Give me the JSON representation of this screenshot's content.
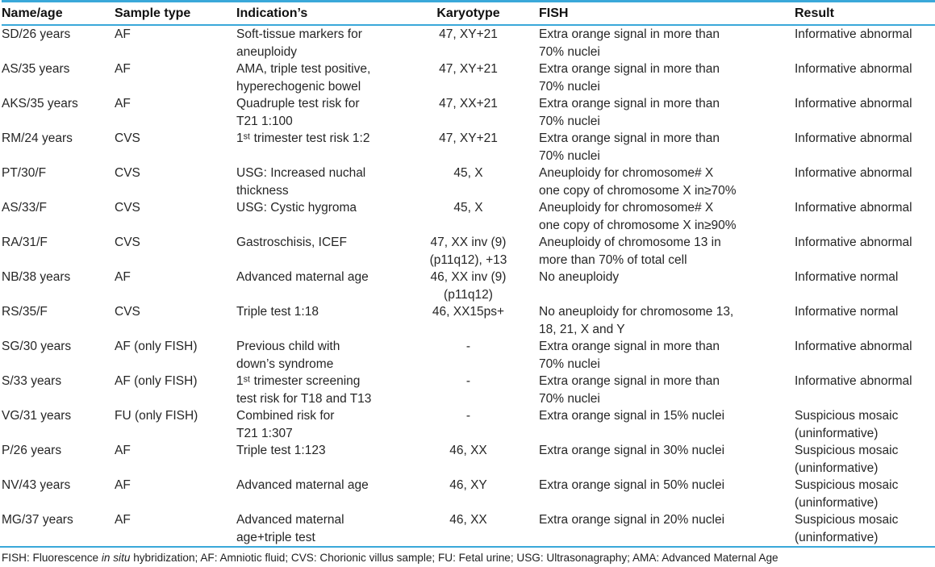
{
  "theme": {
    "accent_color": "#3aa8d9",
    "text_color": "#262626"
  },
  "table": {
    "columns": [
      {
        "key": "name",
        "label": "Name/age"
      },
      {
        "key": "sample",
        "label": "Sample type"
      },
      {
        "key": "indication",
        "label": "Indication’s"
      },
      {
        "key": "karyotype",
        "label": "Karyotype"
      },
      {
        "key": "fish",
        "label": "FISH"
      },
      {
        "key": "result",
        "label": "Result"
      }
    ],
    "rows": [
      {
        "name": "SD/26 years",
        "sample": "AF",
        "indication": "Soft-tissue markers for\naneuploidy",
        "karyotype": "47, XY+21",
        "fish": "Extra orange signal in more than\n70% nuclei",
        "result": "Informative abnormal"
      },
      {
        "name": "AS/35 years",
        "sample": "AF",
        "indication": "AMA, triple test positive,\nhyperechogenic bowel",
        "karyotype": "47, XY+21",
        "fish": "Extra orange signal in more than\n70% nuclei",
        "result": "Informative abnormal"
      },
      {
        "name": "AKS/35 years",
        "sample": "AF",
        "indication": "Quadruple test risk for\nT21 1:100",
        "karyotype": "47, XX+21",
        "fish": "Extra orange signal in more than\n70% nuclei",
        "result": "Informative abnormal"
      },
      {
        "name": "RM/24 years",
        "sample": "CVS",
        "indication": "1ˢᵗ trimester test risk 1:2",
        "karyotype": "47, XY+21",
        "fish": "Extra orange signal in more than\n70% nuclei",
        "result": "Informative abnormal"
      },
      {
        "name": "PT/30/F",
        "sample": "CVS",
        "indication": "USG: Increased nuchal\nthickness",
        "karyotype": "45, X",
        "fish": "Aneuploidy for chromosome# X\none copy of chromosome X in≥70%",
        "result": "Informative abnormal"
      },
      {
        "name": "AS/33/F",
        "sample": "CVS",
        "indication": "USG: Cystic hygroma",
        "karyotype": "45, X",
        "fish": "Aneuploidy for chromosome# X\none copy of chromosome X in≥90%",
        "result": "Informative abnormal"
      },
      {
        "name": "RA/31/F",
        "sample": "CVS",
        "indication": "Gastroschisis, ICEF",
        "karyotype": "47, XX inv (9)\n(p11q12), +13",
        "fish": "Aneuploidy of chromosome 13 in\nmore than 70% of total cell",
        "result": "Informative abnormal"
      },
      {
        "name": "NB/38 years",
        "sample": "AF",
        "indication": "Advanced maternal age",
        "karyotype": "46, XX inv (9)\n(p11q12)",
        "fish": "No aneuploidy",
        "result": "Informative normal"
      },
      {
        "name": "RS/35/F",
        "sample": "CVS",
        "indication": "Triple test 1:18",
        "karyotype": "46, XX15ps+",
        "fish": "No aneuploidy for chromosome 13,\n18, 21, X and Y",
        "result": "Informative normal"
      },
      {
        "name": "SG/30 years",
        "sample": "AF (only FISH)",
        "indication": "Previous child with\ndown’s syndrome",
        "karyotype": "-",
        "fish": "Extra orange signal in more than\n70% nuclei",
        "result": "Informative abnormal"
      },
      {
        "name": "S/33 years",
        "sample": "AF (only FISH)",
        "indication": "1ˢᵗ trimester screening\ntest risk for T18 and T13",
        "karyotype": "-",
        "fish": "Extra orange signal in more than\n70% nuclei",
        "result": "Informative abnormal"
      },
      {
        "name": "VG/31 years",
        "sample": "FU (only FISH)",
        "indication": "Combined risk for\nT21 1:307",
        "karyotype": "-",
        "fish": "Extra orange signal in 15% nuclei",
        "result": "Suspicious mosaic\n(uninformative)"
      },
      {
        "name": "P/26 years",
        "sample": "AF",
        "indication": "Triple test 1:123",
        "karyotype": "46, XX",
        "fish": "Extra orange signal in 30% nuclei",
        "result": "Suspicious mosaic\n(uninformative)"
      },
      {
        "name": "NV/43 years",
        "sample": "AF",
        "indication": "Advanced maternal age",
        "karyotype": "46, XY",
        "fish": "Extra orange signal in 50% nuclei",
        "result": "Suspicious mosaic\n(uninformative)"
      },
      {
        "name": "MG/37 years",
        "sample": "AF",
        "indication": "Advanced maternal\nage+triple test",
        "karyotype": "46, XX",
        "fish": "Extra orange signal in 20% nuclei",
        "result": "Suspicious mosaic\n(uninformative)"
      }
    ],
    "footnote": {
      "prefix": "FISH: Fluorescence ",
      "italic": "in situ",
      "suffix": " hybridization; AF: Amniotic fluid; CVS: Chorionic villus sample; FU: Fetal urine; USG: Ultrasonagraphy; AMA: Advanced Maternal Age"
    }
  }
}
